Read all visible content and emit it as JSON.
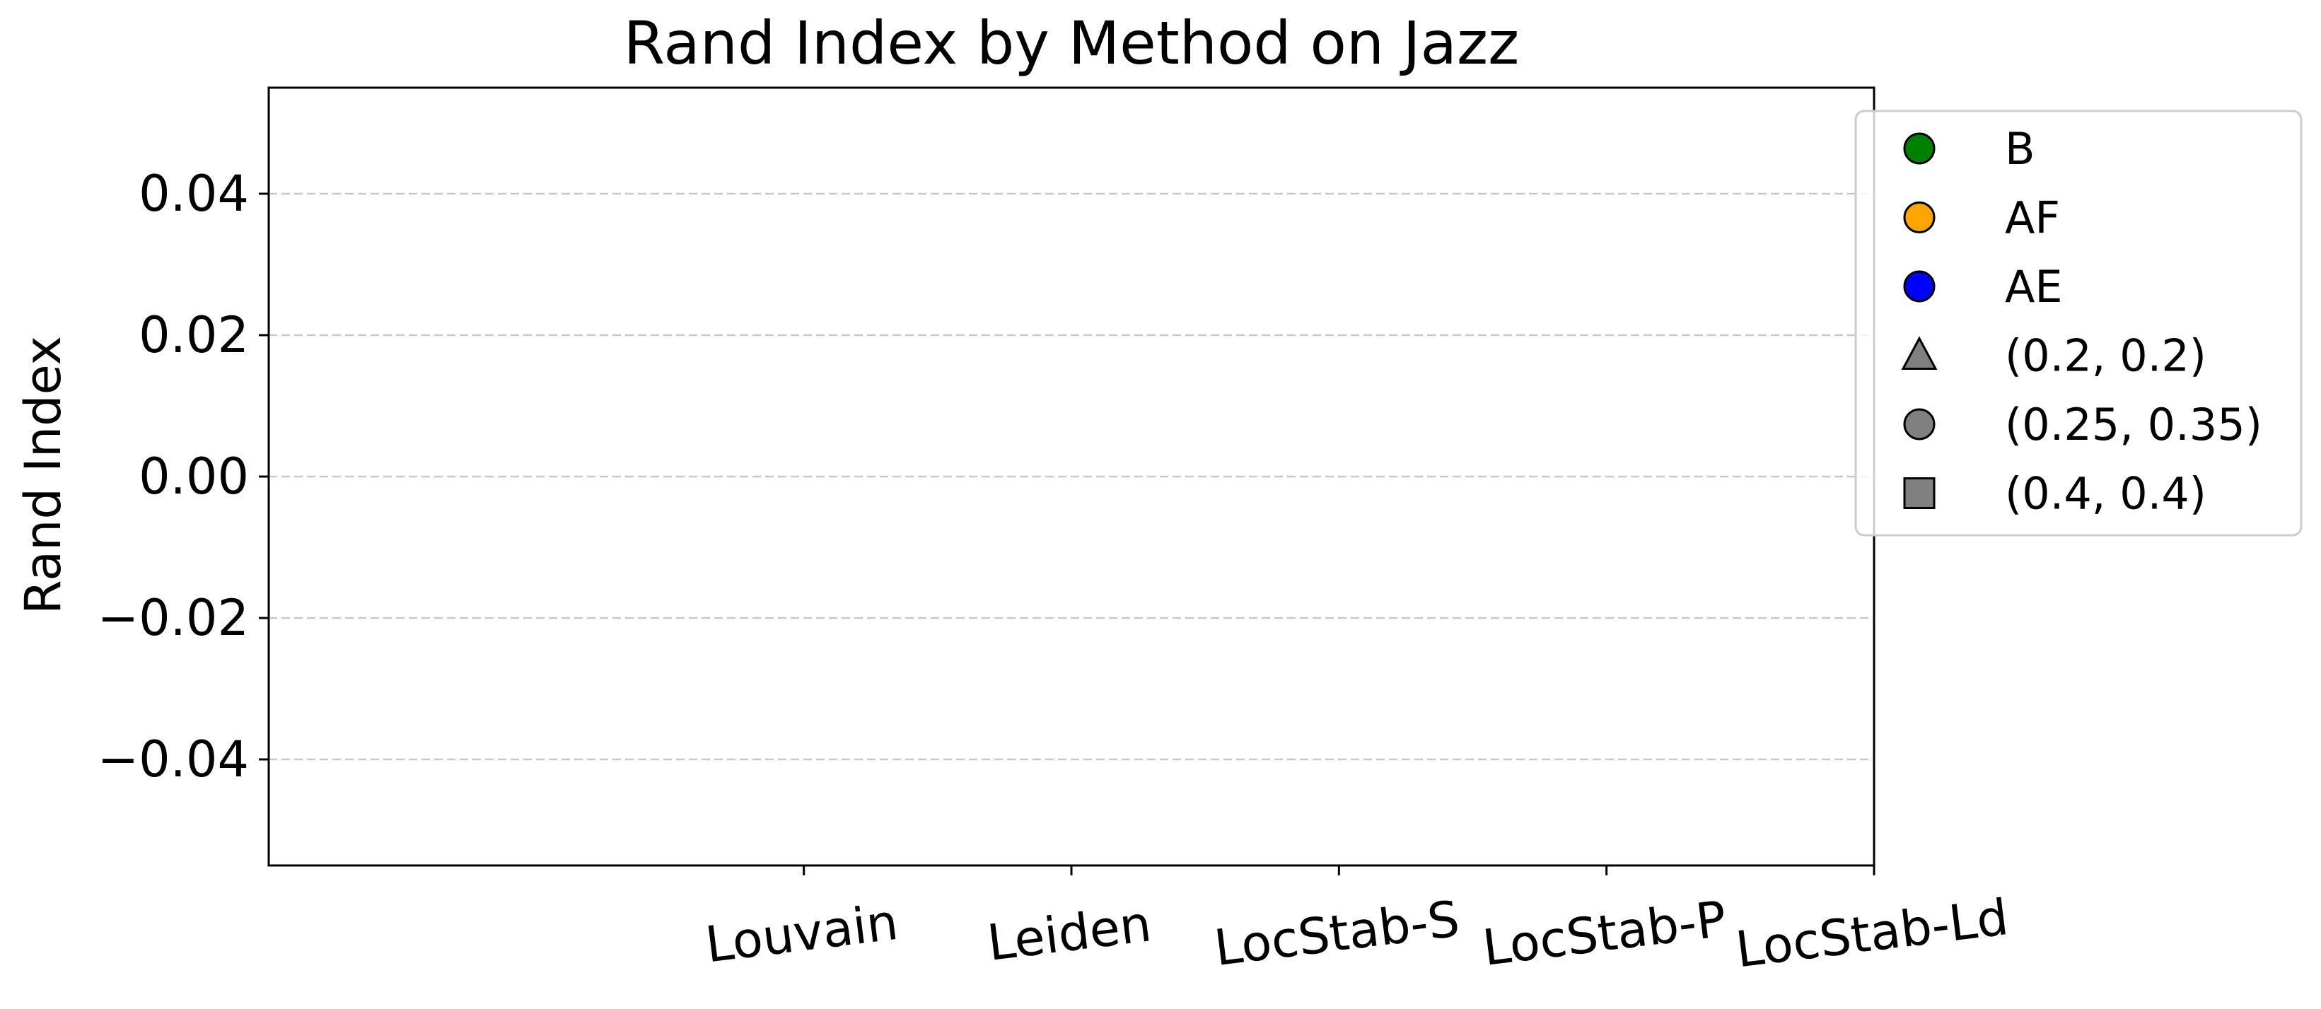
{
  "chart_data": {
    "type": "scatter",
    "title": "Rand Index by Method on Jazz",
    "xlabel": "",
    "ylabel": "Rand Index",
    "categories": [
      "Louvain",
      "Leiden",
      "LocStab-S",
      "LocStab-P",
      "LocStab-Ld"
    ],
    "ylim": [
      -0.055,
      0.055
    ],
    "yticks": [
      0.04,
      0.02,
      0.0,
      -0.02,
      -0.04
    ],
    "ytick_labels": [
      "0.04",
      "0.02",
      "0.00",
      "−0.02",
      "−0.04"
    ],
    "grid": "y-dashed",
    "series": [],
    "legend": {
      "placement": "upper-right-outside",
      "entries": [
        {
          "label": "B",
          "marker": "circle",
          "color": "#008000"
        },
        {
          "label": "AF",
          "marker": "circle",
          "color": "#FFA500"
        },
        {
          "label": "AE",
          "marker": "circle",
          "color": "#0000FF"
        },
        {
          "label": "(0.2, 0.2)",
          "marker": "triangle",
          "color": "#808080"
        },
        {
          "label": "(0.25, 0.35)",
          "marker": "circle",
          "color": "#808080"
        },
        {
          "label": "(0.4, 0.4)",
          "marker": "square",
          "color": "#808080"
        }
      ]
    }
  }
}
